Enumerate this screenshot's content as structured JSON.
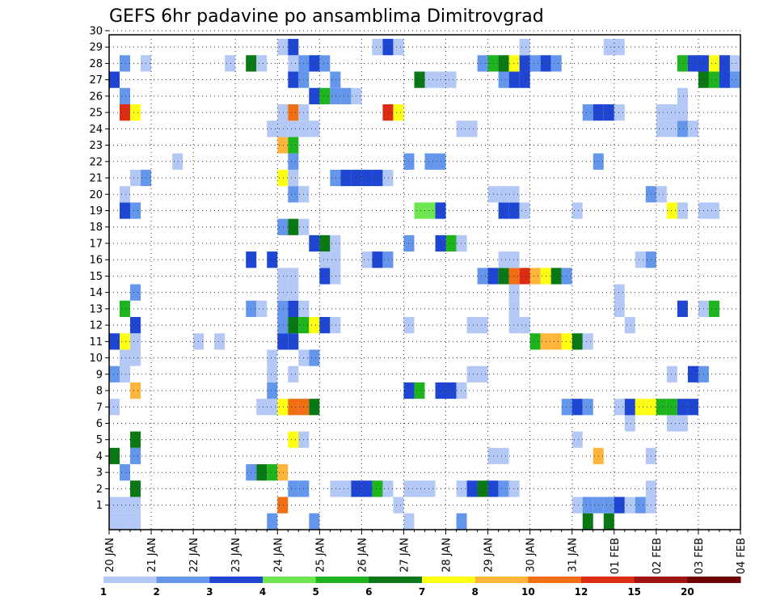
{
  "chart_data": {
    "type": "heatmap",
    "title": "GEFS 6hr padavine po ansamblima Dimitrovgrad",
    "xlabel": "",
    "ylabel": "",
    "x_tick_labels": [
      "20 JAN",
      "21 JAN",
      "22 JAN",
      "23 JAN",
      "24 JAN",
      "25 JAN",
      "26 JAN",
      "27 JAN",
      "28 JAN",
      "29 JAN",
      "30 JAN",
      "31 JAN",
      "01 FEB",
      "02 FEB",
      "03 FEB",
      "04 FEB"
    ],
    "x_range_days": [
      0,
      15
    ],
    "y_tick_labels": [
      "1",
      "2",
      "3",
      "4",
      "5",
      "6",
      "7",
      "8",
      "9",
      "10",
      "11",
      "12",
      "13",
      "14",
      "15",
      "16",
      "17",
      "18",
      "19",
      "20",
      "21",
      "22",
      "23",
      "24",
      "25",
      "26",
      "27",
      "28",
      "29",
      "30"
    ],
    "y_range": [
      0,
      30
    ],
    "grid": true,
    "grid_style": "dotted",
    "legend_placement": "bottom",
    "legend_levels": [
      "1",
      "2",
      "3",
      "4",
      "5",
      "6",
      "7",
      "8",
      "10",
      "12",
      "15",
      "20"
    ],
    "legend_colors": [
      "#b4c8f5",
      "#6496eb",
      "#1e46d2",
      "#6ee650",
      "#1eb41e",
      "#0a7814",
      "#ffff14",
      "#ffb43c",
      "#f06e14",
      "#dc2d14",
      "#a01414",
      "#6e0000"
    ],
    "cells": [
      [
        0,
        0,
        0
      ],
      [
        0.25,
        0,
        0
      ],
      [
        0.5,
        0,
        0
      ],
      [
        3.75,
        0,
        1
      ],
      [
        4.75,
        0,
        1
      ],
      [
        8.25,
        0,
        1
      ],
      [
        11.25,
        0,
        5
      ],
      [
        11.75,
        0,
        5
      ],
      [
        7,
        0,
        0
      ],
      [
        3.25,
        -1,
        1
      ],
      [
        3.5,
        -1,
        4
      ],
      [
        3.75,
        -1,
        0
      ],
      [
        4,
        -1,
        0
      ],
      [
        4.25,
        -1,
        3
      ],
      [
        4.5,
        -1,
        0
      ],
      [
        4.75,
        -1,
        0
      ],
      [
        8.5,
        -1,
        1
      ],
      [
        11.75,
        -1,
        0
      ],
      [
        12,
        -1,
        0
      ],
      [
        0,
        1,
        0
      ],
      [
        0.25,
        1,
        0
      ],
      [
        0.5,
        1,
        0
      ],
      [
        4,
        1,
        8
      ],
      [
        6.75,
        1,
        0
      ],
      [
        11,
        1,
        0
      ],
      [
        11.25,
        1,
        1
      ],
      [
        11.5,
        1,
        1
      ],
      [
        11.75,
        1,
        1
      ],
      [
        12,
        1,
        2
      ],
      [
        12.25,
        1,
        0
      ],
      [
        12.5,
        1,
        1
      ],
      [
        12.75,
        1,
        0
      ],
      [
        0.5,
        2,
        5
      ],
      [
        4.25,
        2,
        1
      ],
      [
        4.5,
        2,
        1
      ],
      [
        5.25,
        2,
        0
      ],
      [
        5.5,
        2,
        0
      ],
      [
        5.75,
        2,
        2
      ],
      [
        6,
        2,
        2
      ],
      [
        6.25,
        2,
        4
      ],
      [
        6.5,
        2,
        0
      ],
      [
        7,
        2,
        0
      ],
      [
        7.25,
        2,
        0
      ],
      [
        7.5,
        2,
        0
      ],
      [
        8.25,
        2,
        0
      ],
      [
        8.5,
        2,
        2
      ],
      [
        8.75,
        2,
        5
      ],
      [
        9,
        2,
        2
      ],
      [
        9.25,
        2,
        1
      ],
      [
        9.5,
        2,
        0
      ],
      [
        12.75,
        2,
        0
      ],
      [
        0.25,
        3,
        1
      ],
      [
        3.25,
        3,
        1
      ],
      [
        3.5,
        3,
        5
      ],
      [
        3.75,
        3,
        4
      ],
      [
        4,
        3,
        7
      ],
      [
        0,
        4,
        5
      ],
      [
        0.5,
        4,
        1
      ],
      [
        9,
        4,
        0
      ],
      [
        9.25,
        4,
        0
      ],
      [
        11.5,
        4,
        7
      ],
      [
        12.75,
        4,
        0
      ],
      [
        0.5,
        5,
        5
      ],
      [
        4.25,
        5,
        6
      ],
      [
        4.5,
        5,
        0
      ],
      [
        11,
        5,
        0
      ],
      [
        15,
        5,
        5
      ],
      [
        12.25,
        6,
        0
      ],
      [
        13.25,
        6,
        0
      ],
      [
        13.5,
        6,
        0
      ],
      [
        0,
        7,
        0
      ],
      [
        3.5,
        7,
        0
      ],
      [
        3.75,
        7,
        0
      ],
      [
        4,
        7,
        6
      ],
      [
        4.25,
        7,
        8
      ],
      [
        4.5,
        7,
        8
      ],
      [
        4.75,
        7,
        5
      ],
      [
        10.75,
        7,
        1
      ],
      [
        11,
        7,
        2
      ],
      [
        11.25,
        7,
        1
      ],
      [
        12,
        7,
        0
      ],
      [
        12.25,
        7,
        2
      ],
      [
        12.5,
        7,
        6
      ],
      [
        12.75,
        7,
        6
      ],
      [
        13,
        7,
        4
      ],
      [
        13.25,
        7,
        4
      ],
      [
        13.5,
        7,
        2
      ],
      [
        13.75,
        7,
        2
      ],
      [
        15,
        7,
        0
      ],
      [
        0.5,
        8,
        7
      ],
      [
        3.75,
        8,
        1
      ],
      [
        7,
        8,
        2
      ],
      [
        7.25,
        8,
        4
      ],
      [
        7.75,
        8,
        2
      ],
      [
        8,
        8,
        2
      ],
      [
        8.25,
        8,
        0
      ],
      [
        0,
        9,
        1
      ],
      [
        0.25,
        9,
        0
      ],
      [
        3.75,
        9,
        0
      ],
      [
        4.25,
        9,
        0
      ],
      [
        8.5,
        9,
        0
      ],
      [
        8.75,
        9,
        0
      ],
      [
        13.25,
        9,
        0
      ],
      [
        13.75,
        9,
        2
      ],
      [
        14,
        9,
        1
      ],
      [
        0.25,
        10,
        0
      ],
      [
        0.5,
        10,
        0
      ],
      [
        3.75,
        10,
        0
      ],
      [
        4.5,
        10,
        0
      ],
      [
        4.75,
        10,
        1
      ],
      [
        15,
        10,
        4
      ],
      [
        0,
        11,
        2
      ],
      [
        0.25,
        11,
        6
      ],
      [
        0.5,
        11,
        0
      ],
      [
        2,
        11,
        0
      ],
      [
        2.5,
        11,
        0
      ],
      [
        4,
        11,
        2
      ],
      [
        4.25,
        11,
        2
      ],
      [
        10,
        11,
        4
      ],
      [
        10.25,
        11,
        7
      ],
      [
        10.5,
        11,
        7
      ],
      [
        10.75,
        11,
        6
      ],
      [
        11,
        11,
        5
      ],
      [
        11.25,
        11,
        0
      ],
      [
        0.5,
        12,
        2
      ],
      [
        4,
        12,
        1
      ],
      [
        4.25,
        12,
        5
      ],
      [
        4.5,
        12,
        4
      ],
      [
        4.75,
        12,
        6
      ],
      [
        5,
        12,
        2
      ],
      [
        5.25,
        12,
        0
      ],
      [
        7,
        12,
        0
      ],
      [
        8.5,
        12,
        0
      ],
      [
        8.75,
        12,
        0
      ],
      [
        9.5,
        12,
        0
      ],
      [
        9.75,
        12,
        0
      ],
      [
        12.25,
        12,
        0
      ],
      [
        0.25,
        13,
        4
      ],
      [
        3.25,
        13,
        1
      ],
      [
        3.5,
        13,
        0
      ],
      [
        4,
        13,
        1
      ],
      [
        4.25,
        13,
        2
      ],
      [
        4.5,
        13,
        0
      ],
      [
        9.5,
        13,
        0
      ],
      [
        12,
        13,
        0
      ],
      [
        13.5,
        13,
        2
      ],
      [
        14,
        13,
        0
      ],
      [
        14.25,
        13,
        4
      ],
      [
        0.5,
        14,
        1
      ],
      [
        4,
        14,
        0
      ],
      [
        4.25,
        14,
        0
      ],
      [
        9.5,
        14,
        0
      ],
      [
        12,
        14,
        0
      ],
      [
        4,
        15,
        0
      ],
      [
        4.25,
        15,
        0
      ],
      [
        5,
        15,
        2
      ],
      [
        5.25,
        15,
        0
      ],
      [
        8.75,
        15,
        1
      ],
      [
        9,
        15,
        2
      ],
      [
        9.25,
        15,
        5
      ],
      [
        9.5,
        15,
        8
      ],
      [
        9.75,
        15,
        9
      ],
      [
        10,
        15,
        7
      ],
      [
        10.25,
        15,
        6
      ],
      [
        10.5,
        15,
        5
      ],
      [
        10.75,
        15,
        1
      ],
      [
        3.25,
        16,
        2
      ],
      [
        3.75,
        16,
        2
      ],
      [
        5,
        16,
        0
      ],
      [
        5.25,
        16,
        0
      ],
      [
        6,
        16,
        0
      ],
      [
        6.25,
        16,
        2
      ],
      [
        6.5,
        16,
        1
      ],
      [
        9.25,
        16,
        0
      ],
      [
        9.5,
        16,
        0
      ],
      [
        12.5,
        16,
        0
      ],
      [
        12.75,
        16,
        1
      ],
      [
        4.75,
        17,
        2
      ],
      [
        5,
        17,
        5
      ],
      [
        5.25,
        17,
        0
      ],
      [
        7,
        17,
        1
      ],
      [
        7.75,
        17,
        2
      ],
      [
        8,
        17,
        4
      ],
      [
        8.25,
        17,
        0
      ],
      [
        4,
        18,
        1
      ],
      [
        4.25,
        18,
        5
      ],
      [
        4.5,
        18,
        0
      ],
      [
        0.25,
        19,
        2
      ],
      [
        0.5,
        19,
        1
      ],
      [
        7.25,
        19,
        3
      ],
      [
        7.5,
        19,
        3
      ],
      [
        7.75,
        19,
        2
      ],
      [
        9.25,
        19,
        2
      ],
      [
        9.5,
        19,
        2
      ],
      [
        9.75,
        19,
        0
      ],
      [
        11,
        19,
        0
      ],
      [
        13.25,
        19,
        6
      ],
      [
        13.5,
        19,
        0
      ],
      [
        14,
        19,
        0
      ],
      [
        14.25,
        19,
        0
      ],
      [
        0.25,
        20,
        0
      ],
      [
        4.25,
        20,
        1
      ],
      [
        4.5,
        20,
        0
      ],
      [
        9,
        20,
        0
      ],
      [
        9.25,
        20,
        0
      ],
      [
        9.5,
        20,
        0
      ],
      [
        12.75,
        20,
        1
      ],
      [
        13,
        20,
        0
      ],
      [
        0.5,
        21,
        0
      ],
      [
        0.75,
        21,
        1
      ],
      [
        4,
        21,
        6
      ],
      [
        4.25,
        21,
        0
      ],
      [
        5.25,
        21,
        1
      ],
      [
        5.5,
        21,
        2
      ],
      [
        5.75,
        21,
        2
      ],
      [
        6,
        21,
        2
      ],
      [
        6.25,
        21,
        2
      ],
      [
        6.5,
        21,
        0
      ],
      [
        1.5,
        22,
        0
      ],
      [
        4.25,
        22,
        1
      ],
      [
        7,
        22,
        1
      ],
      [
        7.5,
        22,
        1
      ],
      [
        7.75,
        22,
        1
      ],
      [
        11.5,
        22,
        1
      ],
      [
        4,
        23,
        7
      ],
      [
        4.25,
        23,
        4
      ],
      [
        3.75,
        24,
        0
      ],
      [
        4,
        24,
        0
      ],
      [
        4.25,
        24,
        0
      ],
      [
        4.5,
        24,
        0
      ],
      [
        4.75,
        24,
        0
      ],
      [
        8.25,
        24,
        0
      ],
      [
        8.5,
        24,
        0
      ],
      [
        13,
        24,
        0
      ],
      [
        13.25,
        24,
        0
      ],
      [
        13.5,
        24,
        1
      ],
      [
        13.75,
        24,
        0
      ],
      [
        0.25,
        25,
        9
      ],
      [
        0.5,
        25,
        6
      ],
      [
        4,
        25,
        0
      ],
      [
        4.25,
        25,
        8
      ],
      [
        4.5,
        25,
        0
      ],
      [
        6.5,
        25,
        9
      ],
      [
        6.75,
        25,
        6
      ],
      [
        11.25,
        25,
        1
      ],
      [
        11.5,
        25,
        2
      ],
      [
        11.75,
        25,
        2
      ],
      [
        12,
        25,
        0
      ],
      [
        13,
        25,
        0
      ],
      [
        13.25,
        25,
        0
      ],
      [
        13.5,
        25,
        0
      ],
      [
        0.25,
        26,
        1
      ],
      [
        4.75,
        26,
        2
      ],
      [
        5,
        26,
        4
      ],
      [
        5.25,
        26,
        1
      ],
      [
        5.5,
        26,
        1
      ],
      [
        5.75,
        26,
        0
      ],
      [
        13.5,
        26,
        0
      ],
      [
        0,
        27,
        2
      ],
      [
        4.25,
        27,
        2
      ],
      [
        4.5,
        27,
        1
      ],
      [
        5.25,
        27,
        1
      ],
      [
        7.25,
        27,
        5
      ],
      [
        7.5,
        27,
        0
      ],
      [
        7.75,
        27,
        0
      ],
      [
        8,
        27,
        0
      ],
      [
        9.25,
        27,
        1
      ],
      [
        9.5,
        27,
        2
      ],
      [
        9.75,
        27,
        2
      ],
      [
        14,
        27,
        5
      ],
      [
        14.25,
        27,
        4
      ],
      [
        14.5,
        27,
        2
      ],
      [
        14.75,
        27,
        1
      ],
      [
        0.25,
        28,
        1
      ],
      [
        0.75,
        28,
        0
      ],
      [
        2.75,
        28,
        0
      ],
      [
        3.25,
        28,
        5
      ],
      [
        3.5,
        28,
        0
      ],
      [
        4.25,
        28,
        0
      ],
      [
        4.5,
        28,
        1
      ],
      [
        4.75,
        28,
        2
      ],
      [
        5,
        28,
        1
      ],
      [
        8.75,
        28,
        1
      ],
      [
        9,
        28,
        4
      ],
      [
        9.25,
        28,
        5
      ],
      [
        9.5,
        28,
        6
      ],
      [
        9.75,
        28,
        2
      ],
      [
        10,
        28,
        1
      ],
      [
        10.25,
        28,
        2
      ],
      [
        10.5,
        28,
        1
      ],
      [
        13.5,
        28,
        4
      ],
      [
        13.75,
        28,
        2
      ],
      [
        14,
        28,
        2
      ],
      [
        14.25,
        28,
        6
      ],
      [
        14.5,
        28,
        2
      ],
      [
        14.75,
        28,
        0
      ],
      [
        4,
        29,
        0
      ],
      [
        4.25,
        29,
        2
      ],
      [
        6.25,
        29,
        0
      ],
      [
        6.5,
        29,
        2
      ],
      [
        6.75,
        29,
        0
      ],
      [
        9.75,
        29,
        0
      ],
      [
        11.75,
        29,
        0
      ],
      [
        12,
        29,
        0
      ]
    ]
  }
}
